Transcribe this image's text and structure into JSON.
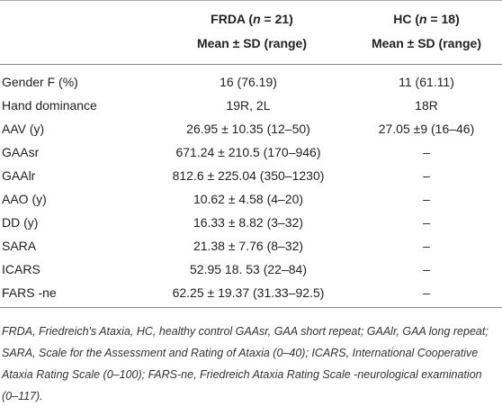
{
  "table": {
    "header": [
      [
        "",
        {
          "pre": "FRDA (",
          "var": "n",
          "post": " = 21)"
        },
        {
          "pre": "HC (",
          "var": "n",
          "post": " = 18)"
        }
      ],
      [
        "",
        "Mean ± SD (range)",
        "Mean ± SD (range)"
      ]
    ],
    "rows": [
      [
        "Gender F (%)",
        "16 (76.19)",
        "11 (61.11)"
      ],
      [
        "Hand dominance",
        "19R, 2L",
        "18R"
      ],
      [
        "AAV (y)",
        "26.95 ± 10.35 (12–50)",
        "27.05 ±9 (16–46)"
      ],
      [
        "GAAsr",
        "671.24 ± 210.5 (170–946)",
        "–"
      ],
      [
        "GAAlr",
        "812.6 ± 225.04 (350–1230)",
        "–"
      ],
      [
        "AAO (y)",
        "10.62 ± 4.58 (4–20)",
        "–"
      ],
      [
        "DD (y)",
        "16.33 ± 8.82 (3–32)",
        "–"
      ],
      [
        "SARA",
        "21.38 ± 7.76 (8–32)",
        "–"
      ],
      [
        "ICARS",
        "52.95 18. 53 (22–84)",
        "–"
      ],
      [
        "FARS -ne",
        "62.25 ± 19.37 (31.33–92.5)",
        "–"
      ]
    ],
    "footnote": "FRDA, Friedreich's Ataxia, HC, healthy control GAAsr, GAA short repeat; GAAlr, GAA long repeat; SARA, Scale for the Assessment and Rating of Ataxia (0–40); ICARS, International Cooperative Ataxia Rating Scale (0–100); FARS-ne, Friedreich Ataxia Rating Scale -neurological examination (0–117)."
  }
}
